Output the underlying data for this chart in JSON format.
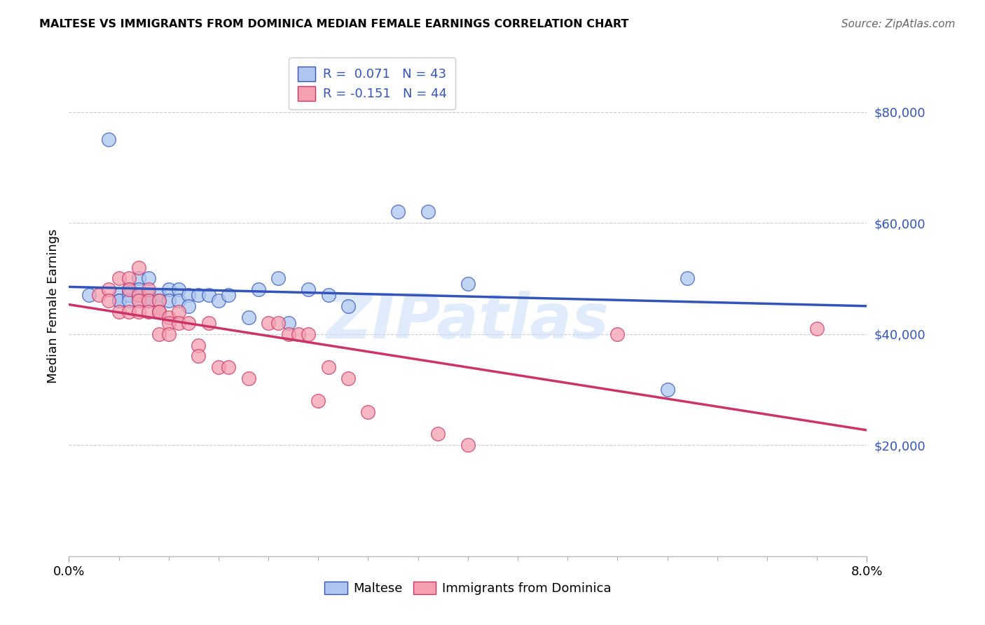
{
  "title": "MALTESE VS IMMIGRANTS FROM DOMINICA MEDIAN FEMALE EARNINGS CORRELATION CHART",
  "source": "Source: ZipAtlas.com",
  "ylabel": "Median Female Earnings",
  "xlim": [
    0.0,
    0.08
  ],
  "ylim": [
    0,
    90000
  ],
  "background_color": "#ffffff",
  "grid_color": "#cccccc",
  "maltese_color": "#aec6f0",
  "dominica_color": "#f5a0b0",
  "maltese_line_color": "#3355bb",
  "dominica_line_color": "#cc3366",
  "watermark": "ZIPatlas",
  "legend_line1": "R =  0.071   N = 43",
  "legend_line2": "R = -0.151   N = 44",
  "maltese_x": [
    0.002,
    0.004,
    0.005,
    0.005,
    0.005,
    0.006,
    0.006,
    0.006,
    0.006,
    0.007,
    0.007,
    0.007,
    0.007,
    0.007,
    0.008,
    0.008,
    0.008,
    0.008,
    0.009,
    0.009,
    0.009,
    0.01,
    0.01,
    0.011,
    0.011,
    0.012,
    0.012,
    0.013,
    0.014,
    0.015,
    0.016,
    0.018,
    0.019,
    0.021,
    0.022,
    0.024,
    0.026,
    0.028,
    0.033,
    0.036,
    0.04,
    0.06,
    0.062
  ],
  "maltese_y": [
    47000,
    75000,
    47000,
    46000,
    46000,
    48000,
    48000,
    47000,
    46000,
    50000,
    48000,
    47000,
    47000,
    46000,
    50000,
    47000,
    46000,
    46000,
    47000,
    46000,
    44000,
    48000,
    46000,
    48000,
    46000,
    47000,
    45000,
    47000,
    47000,
    46000,
    47000,
    43000,
    48000,
    50000,
    42000,
    48000,
    47000,
    45000,
    62000,
    62000,
    49000,
    30000,
    50000
  ],
  "dominica_x": [
    0.003,
    0.004,
    0.004,
    0.005,
    0.005,
    0.006,
    0.006,
    0.006,
    0.007,
    0.007,
    0.007,
    0.007,
    0.008,
    0.008,
    0.008,
    0.009,
    0.009,
    0.009,
    0.009,
    0.01,
    0.01,
    0.01,
    0.011,
    0.011,
    0.012,
    0.013,
    0.013,
    0.014,
    0.015,
    0.016,
    0.018,
    0.02,
    0.021,
    0.022,
    0.023,
    0.024,
    0.025,
    0.026,
    0.028,
    0.03,
    0.037,
    0.04,
    0.055,
    0.075
  ],
  "dominica_y": [
    47000,
    48000,
    46000,
    50000,
    44000,
    50000,
    48000,
    44000,
    52000,
    47000,
    46000,
    44000,
    48000,
    46000,
    44000,
    46000,
    44000,
    44000,
    40000,
    43000,
    42000,
    40000,
    44000,
    42000,
    42000,
    38000,
    36000,
    42000,
    34000,
    34000,
    32000,
    42000,
    42000,
    40000,
    40000,
    40000,
    28000,
    34000,
    32000,
    26000,
    22000,
    20000,
    40000,
    41000
  ]
}
